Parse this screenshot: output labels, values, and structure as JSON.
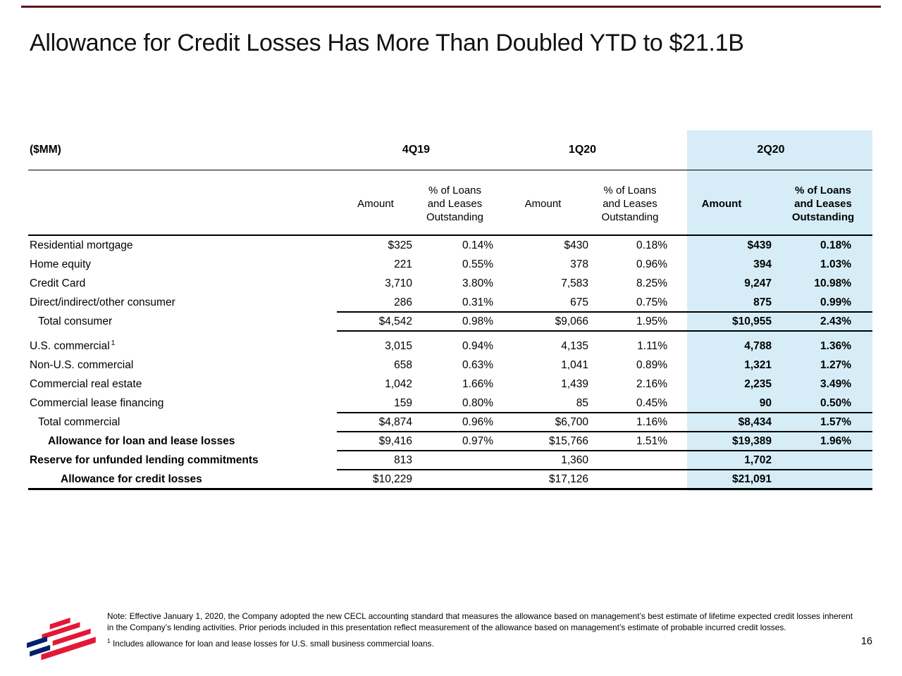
{
  "slide": {
    "title": "Allowance for Credit Losses Has More Than Doubled YTD to $21.1B",
    "page_number": "16"
  },
  "colors": {
    "accent_rule": "#5a141c",
    "highlight": "#d6edf7",
    "logo_red": "#e31837",
    "logo_blue": "#012169"
  },
  "table": {
    "unit_label": "($MM)",
    "period_headers": [
      "4Q19",
      "1Q20",
      "2Q20"
    ],
    "sub_amount": "Amount",
    "sub_pct": "% of Loans\nand Leases\nOutstanding",
    "rows": [
      {
        "label": "Residential mortgage",
        "indent": 0,
        "bold": false,
        "values": [
          "$325",
          "0.14%",
          "$430",
          "0.18%",
          "$439",
          "0.18%"
        ]
      },
      {
        "label": "Home equity",
        "indent": 0,
        "bold": false,
        "values": [
          "221",
          "0.55%",
          "378",
          "0.96%",
          "394",
          "1.03%"
        ]
      },
      {
        "label": "Credit Card",
        "indent": 0,
        "bold": false,
        "values": [
          "3,710",
          "3.80%",
          "7,583",
          "8.25%",
          "9,247",
          "10.98%"
        ]
      },
      {
        "label": "Direct/indirect/other consumer",
        "indent": 0,
        "bold": false,
        "rule_below": "num",
        "values": [
          "286",
          "0.31%",
          "675",
          "0.75%",
          "875",
          "0.99%"
        ]
      },
      {
        "label": "Total consumer",
        "indent": 1,
        "bold": false,
        "rule_below": "num",
        "values": [
          "$4,542",
          "0.98%",
          "$9,066",
          "1.95%",
          "$10,955",
          "2.43%"
        ]
      },
      {
        "label": "U.S. commercial",
        "sup": "1",
        "indent": 0,
        "bold": false,
        "gap_before": true,
        "values": [
          "3,015",
          "0.94%",
          "4,135",
          "1.11%",
          "4,788",
          "1.36%"
        ]
      },
      {
        "label": "Non-U.S. commercial",
        "indent": 0,
        "bold": false,
        "values": [
          "658",
          "0.63%",
          "1,041",
          "0.89%",
          "1,321",
          "1.27%"
        ]
      },
      {
        "label": "Commercial real estate",
        "indent": 0,
        "bold": false,
        "values": [
          "1,042",
          "1.66%",
          "1,439",
          "2.16%",
          "2,235",
          "3.49%"
        ]
      },
      {
        "label": "Commercial lease financing",
        "indent": 0,
        "bold": false,
        "rule_below": "num",
        "values": [
          "159",
          "0.80%",
          "85",
          "0.45%",
          "90",
          "0.50%"
        ]
      },
      {
        "label": "Total commercial",
        "indent": 1,
        "bold": false,
        "rule_below": "num",
        "values": [
          "$4,874",
          "0.96%",
          "$6,700",
          "1.16%",
          "$8,434",
          "1.57%"
        ]
      },
      {
        "label": "Allowance for loan and lease losses",
        "indent": 2,
        "bold": true,
        "rule_below": "num",
        "values": [
          "$9,416",
          "0.97%",
          "$15,766",
          "1.51%",
          "$19,389",
          "1.96%"
        ]
      },
      {
        "label": "Reserve for unfunded lending commitments",
        "indent": 0,
        "bold": true,
        "rule_below": "num",
        "values": [
          "813",
          "",
          "1,360",
          "",
          "1,702",
          ""
        ]
      },
      {
        "label": "Allowance for credit losses",
        "indent": 3,
        "bold": true,
        "rule_below": "thick",
        "values": [
          "$10,229",
          "",
          "$17,126",
          "",
          "$21,091",
          ""
        ]
      }
    ]
  },
  "footer": {
    "note": "Note: Effective January 1, 2020, the Company adopted the new CECL accounting standard that measures the allowance based on management’s best estimate of lifetime expected credit losses inherent in the Company’s lending activities. Prior periods included in this presentation reflect measurement of the allowance based on management’s estimate of probable incurred credit losses.",
    "footnote_sup": "1",
    "footnote_text": "Includes allowance for loan and lease losses for U.S. small business commercial loans."
  }
}
